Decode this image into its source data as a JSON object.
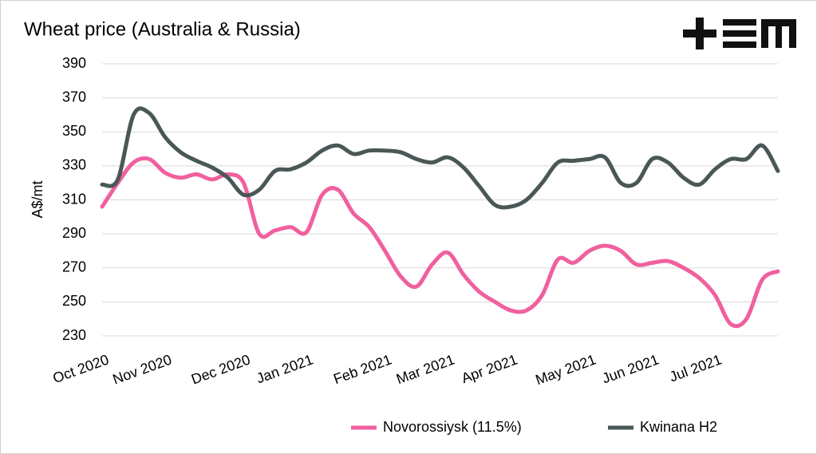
{
  "chart_data": {
    "type": "line",
    "title": "Wheat price (Australia & Russia)",
    "y_label": "A$/mt",
    "categories": [
      "Oct 2020",
      null,
      null,
      null,
      "Nov 2020",
      null,
      null,
      null,
      null,
      "Dec 2020",
      null,
      null,
      null,
      "Jan 2021",
      null,
      null,
      null,
      null,
      "Feb 2021",
      null,
      null,
      null,
      "Mar 2021",
      null,
      null,
      null,
      "Apr 2021",
      null,
      null,
      null,
      null,
      "May 2021",
      null,
      null,
      null,
      "Jun 2021",
      null,
      null,
      null,
      "Jul 2021",
      null,
      null,
      null,
      null
    ],
    "series": [
      {
        "name": "Novorossiysk (11.5%)",
        "color": "#f0609e",
        "values": [
          306,
          320,
          332,
          334,
          326,
          323,
          325,
          322,
          325,
          320,
          290,
          292,
          294,
          291,
          313,
          316,
          302,
          294,
          280,
          265,
          259,
          272,
          279,
          266,
          256,
          250,
          245,
          245,
          254,
          275,
          273,
          280,
          283,
          280,
          272,
          273,
          274,
          270,
          264,
          254,
          237,
          240,
          263,
          268
        ]
      },
      {
        "name": "Kwinana H2",
        "color": "#4a5757",
        "values": [
          319,
          322,
          360,
          361,
          347,
          338,
          333,
          329,
          323,
          313,
          316,
          327,
          328,
          332,
          339,
          342,
          337,
          339,
          339,
          338,
          334,
          332,
          335,
          329,
          318,
          307,
          306,
          310,
          320,
          332,
          333,
          334,
          335,
          320,
          320,
          334,
          332,
          323,
          319,
          328,
          334,
          334,
          342,
          327
        ]
      }
    ],
    "ylim": [
      230,
      390
    ],
    "yticks": [
      230,
      250,
      270,
      290,
      310,
      330,
      350,
      370,
      390
    ],
    "grid": true,
    "legend": "bottom"
  }
}
